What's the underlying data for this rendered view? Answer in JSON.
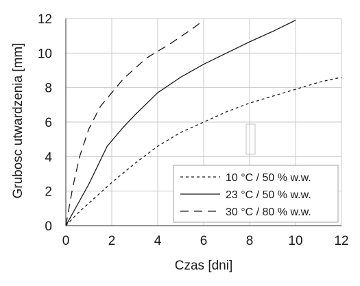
{
  "chart_data": {
    "type": "line",
    "xlabel": "Czas [dni]",
    "ylabel": "Grubosc utwardzenia [mm]",
    "xlim": [
      0,
      12
    ],
    "ylim": [
      0,
      12
    ],
    "xticks": [
      "0",
      "2",
      "4",
      "6",
      "8",
      "10",
      "12"
    ],
    "yticks": [
      "0",
      "2",
      "4",
      "6",
      "8",
      "10",
      "12"
    ],
    "grid": true,
    "legend_position": "bottom-right",
    "series": [
      {
        "name": "10 °C / 50 % w.w.",
        "style": "dotted",
        "color": "#1a1a1a",
        "points": [
          [
            0,
            0
          ],
          [
            0.5,
            0.7
          ],
          [
            1,
            1.3
          ],
          [
            2,
            2.5
          ],
          [
            3,
            3.6
          ],
          [
            4,
            4.6
          ],
          [
            5,
            5.4
          ],
          [
            6,
            6.0
          ],
          [
            7,
            6.6
          ],
          [
            8,
            7.1
          ],
          [
            9,
            7.5
          ],
          [
            10,
            7.9
          ],
          [
            11,
            8.3
          ],
          [
            12,
            8.6
          ]
        ]
      },
      {
        "name": "23 °C / 50 % w.w.",
        "style": "solid",
        "color": "#1a1a1a",
        "points": [
          [
            0,
            0
          ],
          [
            1,
            2.4
          ],
          [
            1.8,
            4.6
          ],
          [
            2.5,
            5.7
          ],
          [
            3,
            6.4
          ],
          [
            4,
            7.7
          ],
          [
            5,
            8.6
          ],
          [
            6,
            9.35
          ],
          [
            7,
            10.0
          ],
          [
            8,
            10.65
          ],
          [
            9,
            11.25
          ],
          [
            10,
            11.9
          ]
        ]
      },
      {
        "name": "30 °C / 80 % w.w.",
        "style": "dashed",
        "color": "#1a1a1a",
        "points": [
          [
            0,
            0
          ],
          [
            0.3,
            2.2
          ],
          [
            0.6,
            4.0
          ],
          [
            1,
            5.6
          ],
          [
            1.5,
            6.9
          ],
          [
            2,
            7.7
          ],
          [
            2.5,
            8.5
          ],
          [
            3,
            9.1
          ],
          [
            3.5,
            9.7
          ],
          [
            4,
            10.1
          ],
          [
            4.5,
            10.5
          ],
          [
            5,
            10.95
          ],
          [
            5.5,
            11.4
          ],
          [
            6,
            11.9
          ]
        ]
      }
    ]
  }
}
